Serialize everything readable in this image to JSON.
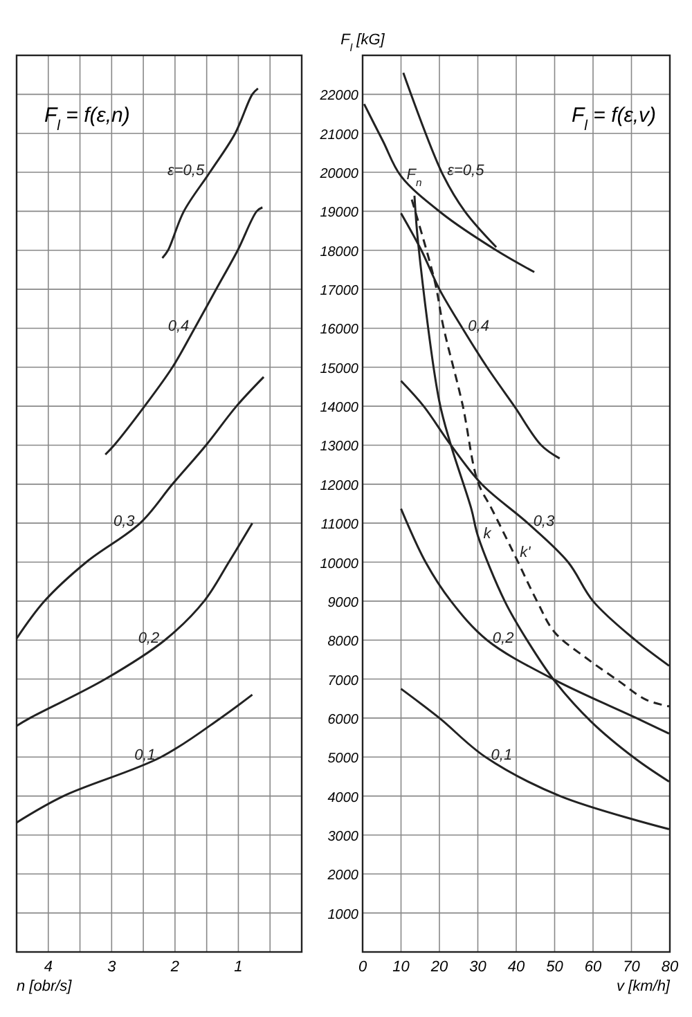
{
  "chart_data": [
    {
      "type": "line",
      "title": "F$_{l}$ = f(ε,n)",
      "xlabel": "n [obr/s]",
      "xlim": [
        4.5,
        0
      ],
      "xticks": [
        4,
        {
          "value": 3.5,
          "label": null
        },
        3,
        {
          "value": 2.5,
          "label": null
        },
        2,
        {
          "value": 1.5,
          "label": null
        },
        1,
        {
          "value": 0.5,
          "label": null
        }
      ],
      "ylim": [
        0,
        23000
      ],
      "yticks": [
        1000,
        2000,
        3000,
        4000,
        5000,
        6000,
        7000,
        8000,
        9000,
        10000,
        11000,
        12000,
        13000,
        14000,
        15000,
        16000,
        17000,
        18000,
        19000,
        20000,
        21000,
        22000
      ],
      "tick_labels": "x",
      "grid": true,
      "line_style": "solid",
      "series": [
        {
          "name": "ε=0,5",
          "color": "#222222",
          "x": [
            2.2,
            2.11,
            1.86,
            1.45,
            1.05,
            0.78,
            0.69
          ],
          "values": [
            17800,
            18000,
            19000,
            20000,
            21000,
            22000,
            22150
          ]
        },
        {
          "name": "0,4",
          "color": "#222222",
          "x": [
            3.1,
            2.96,
            2.48,
            2.04,
            1.69,
            1.35,
            1.01,
            0.71,
            0.62
          ],
          "values": [
            12760,
            13000,
            14000,
            15000,
            16000,
            17000,
            18000,
            19000,
            19100
          ]
        },
        {
          "name": "0,3",
          "color": "#222222",
          "x": [
            4.5,
            4.06,
            3.4,
            2.55,
            2.04,
            1.51,
            1.03,
            0.6
          ],
          "values": [
            8040,
            9000,
            10000,
            11000,
            12000,
            13000,
            14000,
            14750
          ]
        },
        {
          "name": "0,2",
          "color": "#222222",
          "x": [
            4.5,
            4.29,
            3.1,
            2.16,
            1.54,
            1.15,
            0.78
          ],
          "values": [
            5800,
            6000,
            7000,
            8000,
            9000,
            10000,
            11000
          ]
        },
        {
          "name": "0,1",
          "color": "#222222",
          "x": [
            4.5,
            3.76,
            2.22,
            1.28,
            0.78
          ],
          "values": [
            3320,
            4000,
            5000,
            6000,
            6600
          ]
        }
      ]
    },
    {
      "type": "line",
      "title": "F$_{l}$ = f(ε,v)",
      "xlabel": "v [km/h]",
      "ylabel": "F$_{l}$ [kG]",
      "xlim": [
        0,
        80
      ],
      "xticks": [
        0,
        10,
        20,
        30,
        40,
        50,
        60,
        70,
        80
      ],
      "ylim": [
        0,
        23000
      ],
      "yticks": [
        1000,
        2000,
        3000,
        4000,
        5000,
        6000,
        7000,
        8000,
        9000,
        10000,
        11000,
        12000,
        13000,
        14000,
        15000,
        16000,
        17000,
        18000,
        19000,
        20000,
        21000,
        22000
      ],
      "grid": true,
      "line_style": "solid",
      "series": [
        {
          "name": "F$_{n}$",
          "color": "#222222",
          "x": [
            0.4,
            5.3,
            10,
            20.6,
            34.8,
            44.7
          ],
          "values": [
            21750,
            20800,
            19900,
            18950,
            18000,
            17440
          ]
        },
        {
          "name": "ε=0,5",
          "color": "#222222",
          "x": [
            10.6,
            20.6,
            26.6,
            34.8
          ],
          "values": [
            22550,
            20000,
            19000,
            18080
          ]
        },
        {
          "name": "0,4",
          "color": "#222222",
          "x": [
            10,
            15.3,
            20,
            26,
            32.4,
            39.5,
            46.5,
            51.3
          ],
          "values": [
            18950,
            18000,
            17000,
            16000,
            15000,
            14000,
            13000,
            12660
          ]
        },
        {
          "name": "0,3",
          "color": "#222222",
          "x": [
            10,
            15.9,
            23,
            31,
            43,
            53.5,
            60,
            71,
            79.8
          ],
          "values": [
            14650,
            14000,
            13000,
            12000,
            11000,
            10000,
            9000,
            8000,
            7340
          ]
        },
        {
          "name": "0,2",
          "color": "#222222",
          "x": [
            10,
            16.4,
            23,
            32.4,
            49.6,
            71.3,
            79.8
          ],
          "values": [
            11370,
            10000,
            9000,
            8000,
            7000,
            6000,
            5600
          ]
        },
        {
          "name": "0,1",
          "color": "#222222",
          "x": [
            10,
            20,
            32,
            51.4,
            79.8
          ],
          "values": [
            6750,
            6000,
            5000,
            4000,
            3150
          ]
        },
        {
          "name": "k",
          "color": "#222222",
          "x": [
            13.5,
            14.5,
            19.9,
            23,
            28.3,
            30,
            37,
            43,
            50,
            59.6,
            71,
            79.8
          ],
          "values": [
            19400,
            18150,
            14160,
            13000,
            11370,
            10680,
            9000,
            7970,
            6950,
            5900,
            4960,
            4370
          ]
        },
        {
          "name": "k'",
          "color": "#222222",
          "line_style": "dashed",
          "x": [
            12.8,
            18.8,
            21,
            26,
            30,
            33.6,
            39.5,
            45.4,
            50,
            58.5,
            66.7,
            73.8,
            79.8
          ],
          "values": [
            19300,
            17200,
            16050,
            14050,
            12060,
            11370,
            10200,
            9000,
            8200,
            7520,
            6950,
            6470,
            6300
          ]
        }
      ]
    }
  ]
}
